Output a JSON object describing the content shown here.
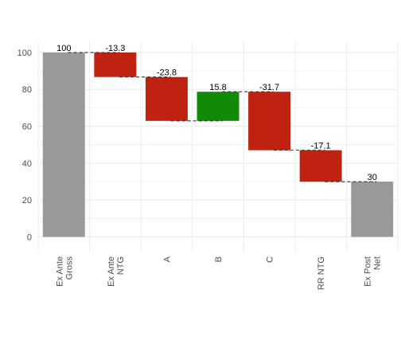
{
  "chart_data": {
    "type": "waterfall",
    "title": "",
    "xlabel": "",
    "ylabel": "",
    "ylim": [
      -8,
      106
    ],
    "y_ticks": [
      0,
      20,
      40,
      60,
      80,
      100
    ],
    "y_tick_labels": [
      "0",
      "20",
      "40",
      "60",
      "80",
      "100"
    ],
    "grid": true,
    "legend": "none",
    "categories": [
      {
        "lines": [
          "Ex Ante",
          "Gross"
        ]
      },
      {
        "lines": [
          "Ex Ante",
          "NTG"
        ]
      },
      {
        "lines": [
          "A"
        ]
      },
      {
        "lines": [
          "B"
        ]
      },
      {
        "lines": [
          "C"
        ]
      },
      {
        "lines": [
          "RR NTG"
        ]
      },
      {
        "lines": [
          "Ex Post",
          "Net"
        ]
      }
    ],
    "bars": [
      {
        "start": 0,
        "end": 100,
        "kind": "total",
        "label": "100"
      },
      {
        "start": 100,
        "end": 86.7,
        "kind": "decrease",
        "label": "-13.3"
      },
      {
        "start": 86.7,
        "end": 62.9,
        "kind": "decrease",
        "label": "-23.8"
      },
      {
        "start": 62.9,
        "end": 78.7,
        "kind": "increase",
        "label": "15.8"
      },
      {
        "start": 78.7,
        "end": 47.0,
        "kind": "decrease",
        "label": "-31.7"
      },
      {
        "start": 47.0,
        "end": 29.9,
        "kind": "decrease",
        "label": "-17.1"
      },
      {
        "start": 0,
        "end": 30,
        "kind": "total",
        "label": "30"
      }
    ],
    "colors": {
      "total": "#999999",
      "decrease": "#bf2211",
      "increase": "#138a07",
      "connector": "#333333",
      "grid": "#ebebeb",
      "axis_text": "#4d4d4d"
    }
  }
}
